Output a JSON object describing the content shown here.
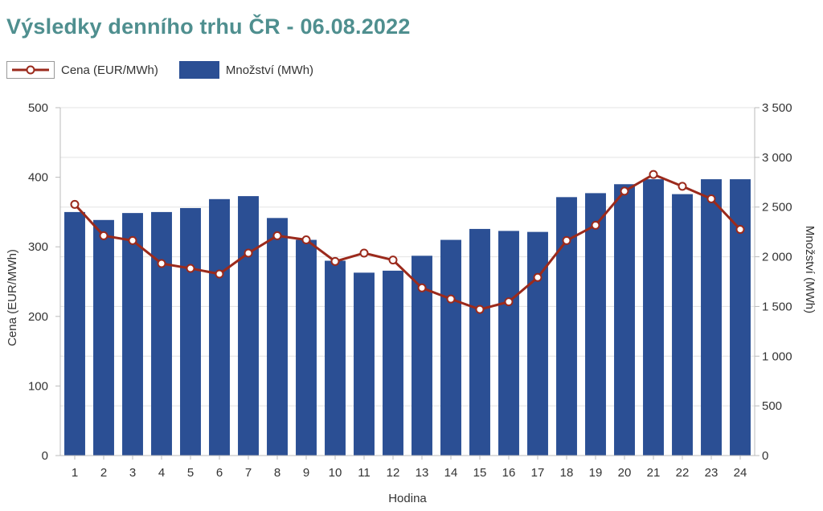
{
  "title": "Výsledky denního trhu ČR - 06.08.2022",
  "colors": {
    "title": "#4f8f8f",
    "bars": "#2b4f94",
    "line": "#9b2a1c",
    "grid": "#e3e3e3"
  },
  "chart_data": {
    "type": "bar",
    "categories": [
      "1",
      "2",
      "3",
      "4",
      "5",
      "6",
      "7",
      "8",
      "9",
      "10",
      "11",
      "12",
      "13",
      "14",
      "15",
      "16",
      "17",
      "18",
      "19",
      "20",
      "21",
      "22",
      "23",
      "24"
    ],
    "xlabel": "Hodina",
    "ylabel_left": "Cena (EUR/MWh)",
    "ylabel_right": "Množství (MWh)",
    "left_axis": {
      "min": 0,
      "max": 500,
      "ticks": [
        "0",
        "100",
        "200",
        "300",
        "400",
        "500"
      ]
    },
    "right_axis": {
      "min": 0,
      "max": 3500,
      "ticks": [
        "0",
        "500",
        "1 000",
        "1 500",
        "2 000",
        "2 500",
        "3 000",
        "3 500"
      ]
    },
    "legend_position": "top-left",
    "grid": true,
    "series": [
      {
        "name": "Cena (EUR/MWh)",
        "type": "line",
        "axis": "left",
        "values": [
          361,
          316,
          309,
          276,
          269,
          261,
          291,
          316,
          310,
          279,
          291,
          281,
          241,
          225,
          210,
          221,
          256,
          309,
          331,
          380,
          404,
          387,
          369,
          325
        ]
      },
      {
        "name": "Množství (MWh)",
        "type": "bar",
        "axis": "right",
        "values": [
          2450,
          2370,
          2440,
          2450,
          2490,
          2580,
          2610,
          2390,
          2170,
          1960,
          1840,
          1860,
          2010,
          2170,
          2280,
          2260,
          2250,
          2600,
          2640,
          2730,
          2780,
          2630,
          2780,
          2780
        ]
      }
    ]
  }
}
